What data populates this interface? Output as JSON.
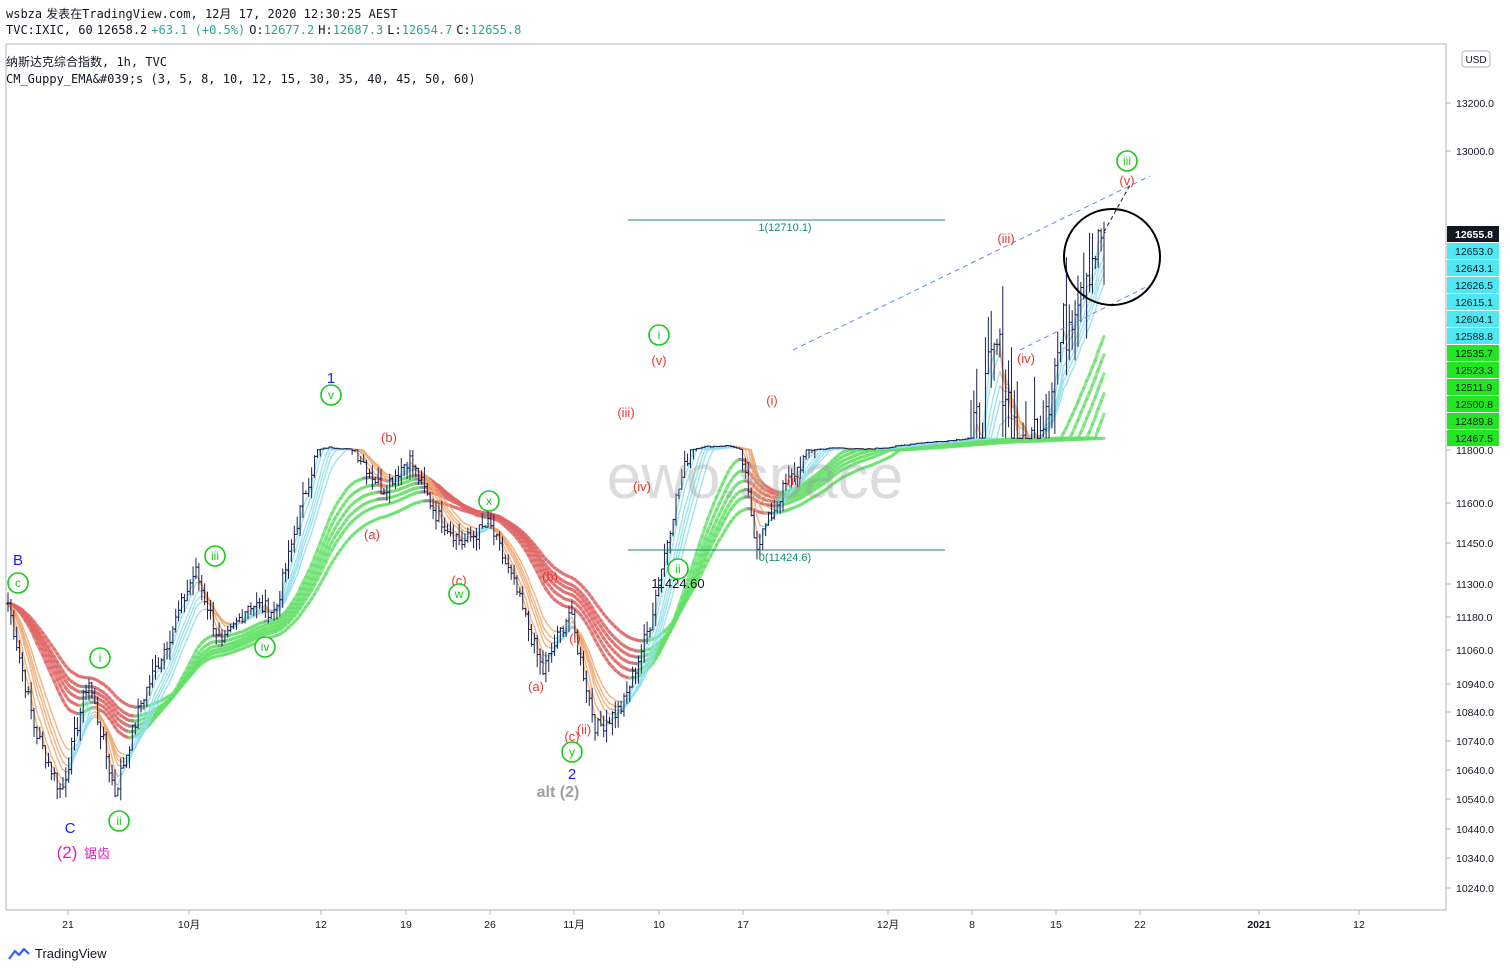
{
  "header": {
    "author": "wsbza",
    "published_line": "发表在TradingView.com, 12月 17, 2020 12:30:25 AEST",
    "symbol": "TVC:IXIC, 60",
    "last": "12658.2",
    "change": "+63.1 (+0.5%)",
    "o_label": "O:",
    "o_value": "12677.2",
    "h_label": "H:",
    "h_value": "12687.3",
    "l_label": "L:",
    "l_value": "12654.7",
    "c_label": "C:",
    "c_value": "12655.8",
    "legend_title": "纳斯达克综合指数, 1h, TVC",
    "indicator": "CM_Guppy_EMA&#039;s (3, 5, 8, 10, 12, 15, 30, 35, 40, 45, 50, 60)"
  },
  "currency_button": "USD",
  "watermark": "ewo.space",
  "footer_brand": "TradingView",
  "colors": {
    "price_bar": "#1a1f4f",
    "fast_up": "#8fdfec",
    "fast_down": "#f0a870",
    "fast_neutral": "#bdbdbd",
    "slow_up": "#66e06a",
    "slow_down": "#e06666",
    "slow_neutral": "#8a8a8a",
    "label_red": "#e53935",
    "label_green": "#19c919",
    "label_blue": "#1a1aff",
    "label_magenta": "#e020c0",
    "fib_line": "#138a7a",
    "channel": "#5b8fd8",
    "price_tag_last": "#131722",
    "price_tag_fast": "#4ee7f2",
    "price_tag_slow": "#22e622"
  },
  "chart_data": {
    "type": "candlestick",
    "interval": "1h",
    "ylim": [
      10120,
      13420
    ],
    "y_ticks": [
      "10240.0",
      "10340.0",
      "10440.0",
      "10540.0",
      "10640.0",
      "10740.0",
      "10840.0",
      "10940.0",
      "11060.0",
      "11180.0",
      "11300.0",
      "11450.0",
      "11600.0",
      "11800.0",
      "13000.0",
      "13200.0"
    ],
    "x_ticks": [
      "21",
      "10月",
      "12",
      "19",
      "26",
      "11月",
      "10",
      "17",
      "12月",
      "8",
      "15",
      "22",
      "2021",
      "12"
    ],
    "series_path": [
      [
        "21",
        11230
      ],
      [
        "",
        10780
      ],
      [
        "",
        10560
      ],
      [
        "",
        10960
      ],
      [
        "",
        10560
      ],
      [
        "",
        10880
      ],
      [
        "",
        11100
      ],
      [
        "10月",
        11350
      ],
      [
        "",
        11070
      ],
      [
        "",
        11230
      ],
      [
        "",
        11200
      ],
      [
        "",
        11600
      ],
      [
        "12",
        11950
      ],
      [
        "",
        11800
      ],
      [
        "",
        11650
      ],
      [
        "19",
        11770
      ],
      [
        "",
        11560
      ],
      [
        "",
        11450
      ],
      [
        "26",
        11520
      ],
      [
        "",
        11280
      ],
      [
        "",
        10980
      ],
      [
        "",
        11200
      ],
      [
        "11月",
        10780
      ],
      [
        "",
        10860
      ],
      [
        "",
        11150
      ],
      [
        "",
        11620
      ],
      [
        "",
        11980
      ],
      [
        "10",
        12040
      ],
      [
        "",
        11440
      ],
      [
        "",
        11650
      ],
      [
        "17",
        11800
      ],
      [
        "",
        11920
      ],
      [
        "",
        11830
      ],
      [
        "",
        11950
      ],
      [
        "12月",
        12180
      ],
      [
        "",
        12290
      ],
      [
        "8",
        12450
      ],
      [
        "",
        12550
      ],
      [
        "",
        12440
      ],
      [
        "15",
        12520
      ],
      [
        "",
        12610
      ],
      [
        "",
        12660
      ]
    ],
    "fib_levels": [
      {
        "label": "1(12710.1)",
        "value": 12710.1
      },
      {
        "label": "0(11424.6)",
        "value": 11424.6
      }
    ],
    "price_tags": [
      {
        "label": "12655.8",
        "group": "last"
      },
      {
        "label": "12653.0",
        "group": "fast"
      },
      {
        "label": "12643.1",
        "group": "fast"
      },
      {
        "label": "12626.5",
        "group": "fast"
      },
      {
        "label": "12615.1",
        "group": "fast"
      },
      {
        "label": "12604.1",
        "group": "fast"
      },
      {
        "label": "12588.8",
        "group": "fast"
      },
      {
        "label": "12535.7",
        "group": "slow"
      },
      {
        "label": "12523.3",
        "group": "slow"
      },
      {
        "label": "12511.9",
        "group": "slow"
      },
      {
        "label": "12500.8",
        "group": "slow"
      },
      {
        "label": "12489.8",
        "group": "slow"
      },
      {
        "label": "12467.5",
        "group": "slow"
      }
    ],
    "low_annotation": "11424.60",
    "wave_labels": [
      {
        "text": "B",
        "style": "blue"
      },
      {
        "text": "c",
        "style": "circle"
      },
      {
        "text": "C",
        "style": "blue"
      },
      {
        "text": "(2)",
        "style": "magenta-large"
      },
      {
        "text": "锯齿",
        "style": "magenta"
      },
      {
        "text": "i",
        "style": "circle"
      },
      {
        "text": "ii",
        "style": "circle"
      },
      {
        "text": "iii",
        "style": "circle"
      },
      {
        "text": "iv",
        "style": "circle"
      },
      {
        "text": "v",
        "style": "circle"
      },
      {
        "text": "1",
        "style": "blue"
      },
      {
        "text": "(b)",
        "style": "red"
      },
      {
        "text": "(a)",
        "style": "red"
      },
      {
        "text": "(c)",
        "style": "red"
      },
      {
        "text": "w",
        "style": "circle"
      },
      {
        "text": "x",
        "style": "circle"
      },
      {
        "text": "(b)",
        "style": "red"
      },
      {
        "text": "(a)",
        "style": "red"
      },
      {
        "text": "(i)",
        "style": "red"
      },
      {
        "text": "(c)",
        "style": "red"
      },
      {
        "text": "(ii)",
        "style": "red"
      },
      {
        "text": "y",
        "style": "circle"
      },
      {
        "text": "2",
        "style": "blue"
      },
      {
        "text": "alt (2)",
        "style": "gray"
      },
      {
        "text": "(iii)",
        "style": "red"
      },
      {
        "text": "(iv)",
        "style": "red"
      },
      {
        "text": "i",
        "style": "circle"
      },
      {
        "text": "(v)",
        "style": "red"
      },
      {
        "text": "ii",
        "style": "circle"
      },
      {
        "text": "(i)",
        "style": "red"
      },
      {
        "text": "(ii)",
        "style": "red"
      },
      {
        "text": "(iii)",
        "style": "red"
      },
      {
        "text": "(iv)",
        "style": "red"
      },
      {
        "text": "iii",
        "style": "circle"
      },
      {
        "text": "(v)",
        "style": "red"
      }
    ]
  }
}
